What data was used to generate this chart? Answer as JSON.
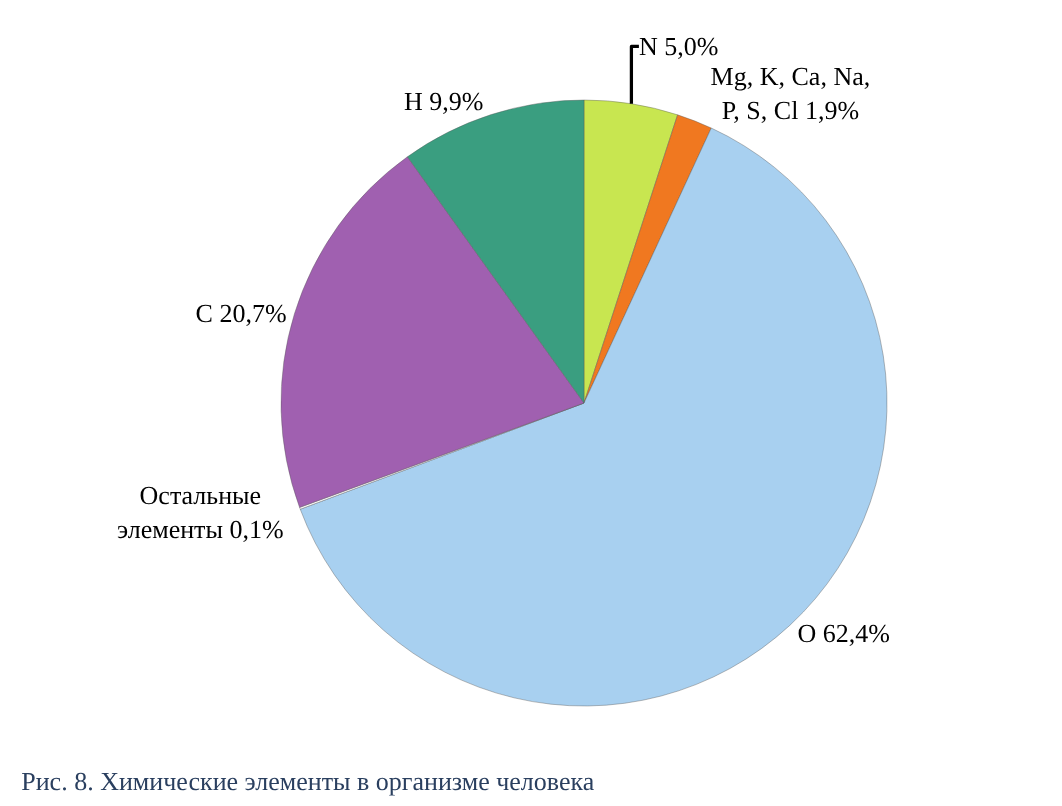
{
  "chart_data": {
    "type": "pie",
    "title": "Рис. 8. Химические элементы в организме человека",
    "categories": [
      "N",
      "Mg, K, Ca, Na,\nP, S, Cl",
      "O",
      "Остальные\nэлементы",
      "C",
      "H"
    ],
    "values": [
      5.0,
      1.9,
      62.4,
      0.1,
      20.7,
      9.9
    ],
    "value_labels": [
      "5,0%",
      "1,9%",
      "62,4%",
      "0,1%",
      "20,7%",
      "9,9%"
    ],
    "colors": [
      "#c8e650",
      "#f07820",
      "#a8d0f0",
      "#ffffff",
      "#a060b0",
      "#3a9e80"
    ],
    "legend": false
  }
}
